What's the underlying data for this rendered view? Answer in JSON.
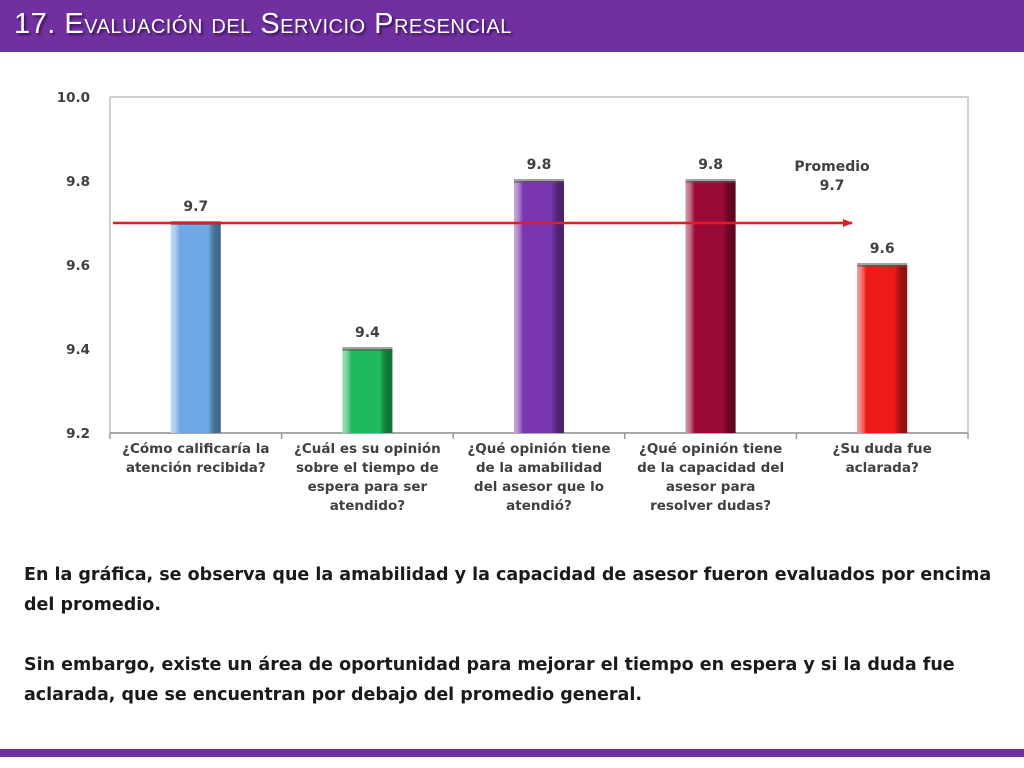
{
  "title": "17. Evaluación del Servicio Presencial",
  "chart_data": {
    "type": "bar",
    "categories": [
      "¿Cómo calificaría la\natención recibida?",
      "¿Cuál es su opinión\nsobre el tiempo de\nespera para ser\natendido?",
      "¿Qué opinión tiene\nde la amabilidad\ndel asesor que lo\natendió?",
      "¿Qué opinión tiene\nde la capacidad del\nasesor para\nresolver dudas?",
      "¿Su duda fue\naclarada?"
    ],
    "values": [
      9.7,
      9.4,
      9.8,
      9.8,
      9.6
    ],
    "data_labels": [
      "9.7",
      "9.4",
      "9.8",
      "9.8",
      "9.6"
    ],
    "colors": [
      "#6fa8e6",
      "#1fb85a",
      "#7a35b0",
      "#9a0a36",
      "#ee1a1a"
    ],
    "ylim": [
      9.2,
      10.0
    ],
    "yticks": [
      "9.2",
      "9.4",
      "9.6",
      "9.8",
      "10.0"
    ],
    "average": {
      "value": 9.7,
      "label_line1": "Promedio",
      "label_line2": "9.7",
      "color": "#e31b23"
    },
    "grid": false,
    "legend": "none"
  },
  "paragraphs": [
    "En la gráfica, se observa que la amabilidad y la capacidad de asesor fueron evaluados por encima del promedio.",
    "Sin embargo, existe un área de oportunidad para mejorar el tiempo en espera y si la duda fue aclarada, que se encuentran por debajo del promedio general."
  ],
  "colors": {
    "header": "#7030a0",
    "footer": "#7030a0"
  }
}
